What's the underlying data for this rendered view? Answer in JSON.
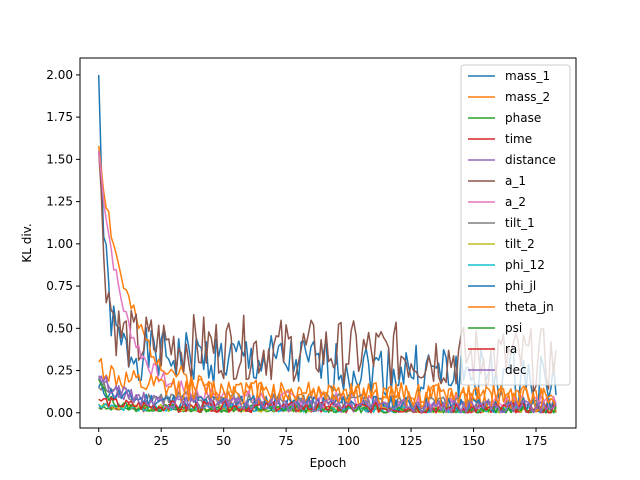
{
  "chart_data": {
    "type": "line",
    "title": "",
    "xlabel": "Epoch",
    "ylabel": "KL div.",
    "xlim": [
      -7.5,
      191
    ],
    "ylim": [
      -0.09,
      2.1
    ],
    "x_ticks": [
      0,
      25,
      50,
      75,
      100,
      125,
      150,
      175
    ],
    "y_ticks": [
      0.0,
      0.25,
      0.5,
      0.75,
      1.0,
      1.25,
      1.5,
      1.75,
      2.0
    ],
    "x_tick_labels": [
      "0",
      "25",
      "50",
      "75",
      "100",
      "125",
      "150",
      "175"
    ],
    "y_tick_labels": [
      "0.00",
      "0.25",
      "0.50",
      "0.75",
      "1.00",
      "1.25",
      "1.50",
      "1.75",
      "2.00"
    ],
    "grid": false,
    "legend_position": "top-right",
    "x_start": 0,
    "x_end": 183,
    "series": [
      {
        "name": "mass_1",
        "color": "#1f77b4",
        "start": 2.0,
        "level": 0.36,
        "decay": 2.5,
        "noise": 0.1,
        "fade_to": 0.25,
        "seed": 1
      },
      {
        "name": "mass_2",
        "color": "#ff7f0e",
        "start": 1.58,
        "level": 0.14,
        "decay": 12,
        "noise": 0.04,
        "fade_to": 0.12,
        "seed": 2
      },
      {
        "name": "phase",
        "color": "#2ca02c",
        "start": 0.03,
        "level": 0.02,
        "decay": 5,
        "noise": 0.008,
        "fade_to": 0.02,
        "seed": 3
      },
      {
        "name": "time",
        "color": "#d62728",
        "start": 0.05,
        "level": 0.03,
        "decay": 5,
        "noise": 0.015,
        "fade_to": 0.02,
        "seed": 4
      },
      {
        "name": "distance",
        "color": "#9467bd",
        "start": 0.2,
        "level": 0.06,
        "decay": 10,
        "noise": 0.025,
        "fade_to": 0.03,
        "seed": 5
      },
      {
        "name": "a_1",
        "color": "#8c564b",
        "start": 1.55,
        "level": 0.42,
        "decay": 3,
        "noise": 0.12,
        "fade_to": 0.45,
        "seed": 6
      },
      {
        "name": "a_2",
        "color": "#e377c2",
        "start": 1.55,
        "level": 0.1,
        "decay": 10,
        "noise": 0.03,
        "fade_to": 0.06,
        "seed": 7
      },
      {
        "name": "tilt_1",
        "color": "#7f7f7f",
        "start": 0.15,
        "level": 0.08,
        "decay": 15,
        "noise": 0.03,
        "fade_to": 0.07,
        "seed": 8
      },
      {
        "name": "tilt_2",
        "color": "#bcbd22",
        "start": 0.05,
        "level": 0.03,
        "decay": 5,
        "noise": 0.012,
        "fade_to": 0.02,
        "seed": 9
      },
      {
        "name": "phi_12",
        "color": "#17becf",
        "start": 0.05,
        "level": 0.03,
        "decay": 5,
        "noise": 0.012,
        "fade_to": 0.02,
        "seed": 10
      },
      {
        "name": "phi_jl",
        "color": "#1f77b4",
        "start": 0.15,
        "level": 0.07,
        "decay": 10,
        "noise": 0.03,
        "fade_to": 0.05,
        "seed": 11
      },
      {
        "name": "theta_jn",
        "color": "#ff7f0e",
        "start": 0.3,
        "level": 0.15,
        "decay": 8,
        "noise": 0.05,
        "fade_to": 0.1,
        "seed": 12
      },
      {
        "name": "psi",
        "color": "#2ca02c",
        "start": 0.2,
        "level": 0.03,
        "decay": 4,
        "noise": 0.015,
        "fade_to": 0.02,
        "seed": 13
      },
      {
        "name": "ra",
        "color": "#d62728",
        "start": 0.08,
        "level": 0.04,
        "decay": 8,
        "noise": 0.02,
        "fade_to": 0.03,
        "seed": 14
      },
      {
        "name": "dec",
        "color": "#9467bd",
        "start": 0.22,
        "level": 0.06,
        "decay": 10,
        "noise": 0.025,
        "fade_to": 0.04,
        "seed": 15
      }
    ]
  }
}
